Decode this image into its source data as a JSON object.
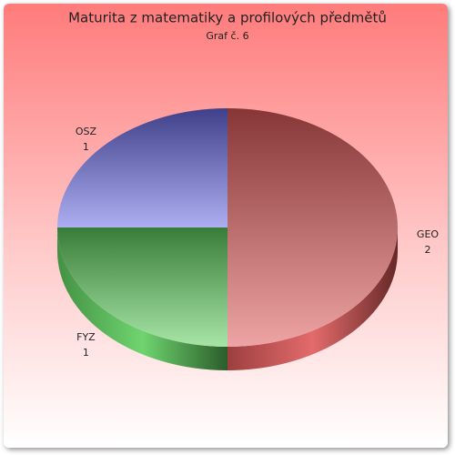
{
  "chart_data": {
    "type": "pie",
    "title": "Maturita z matematiky a profilových předmětů",
    "subtitle": "Graf č. 6",
    "categories": [
      "GEO",
      "FYZ",
      "OSZ"
    ],
    "values": [
      2,
      1,
      1
    ],
    "colors": [
      "#e05a5a",
      "#5fcf5f",
      "#6a6ae6"
    ]
  }
}
